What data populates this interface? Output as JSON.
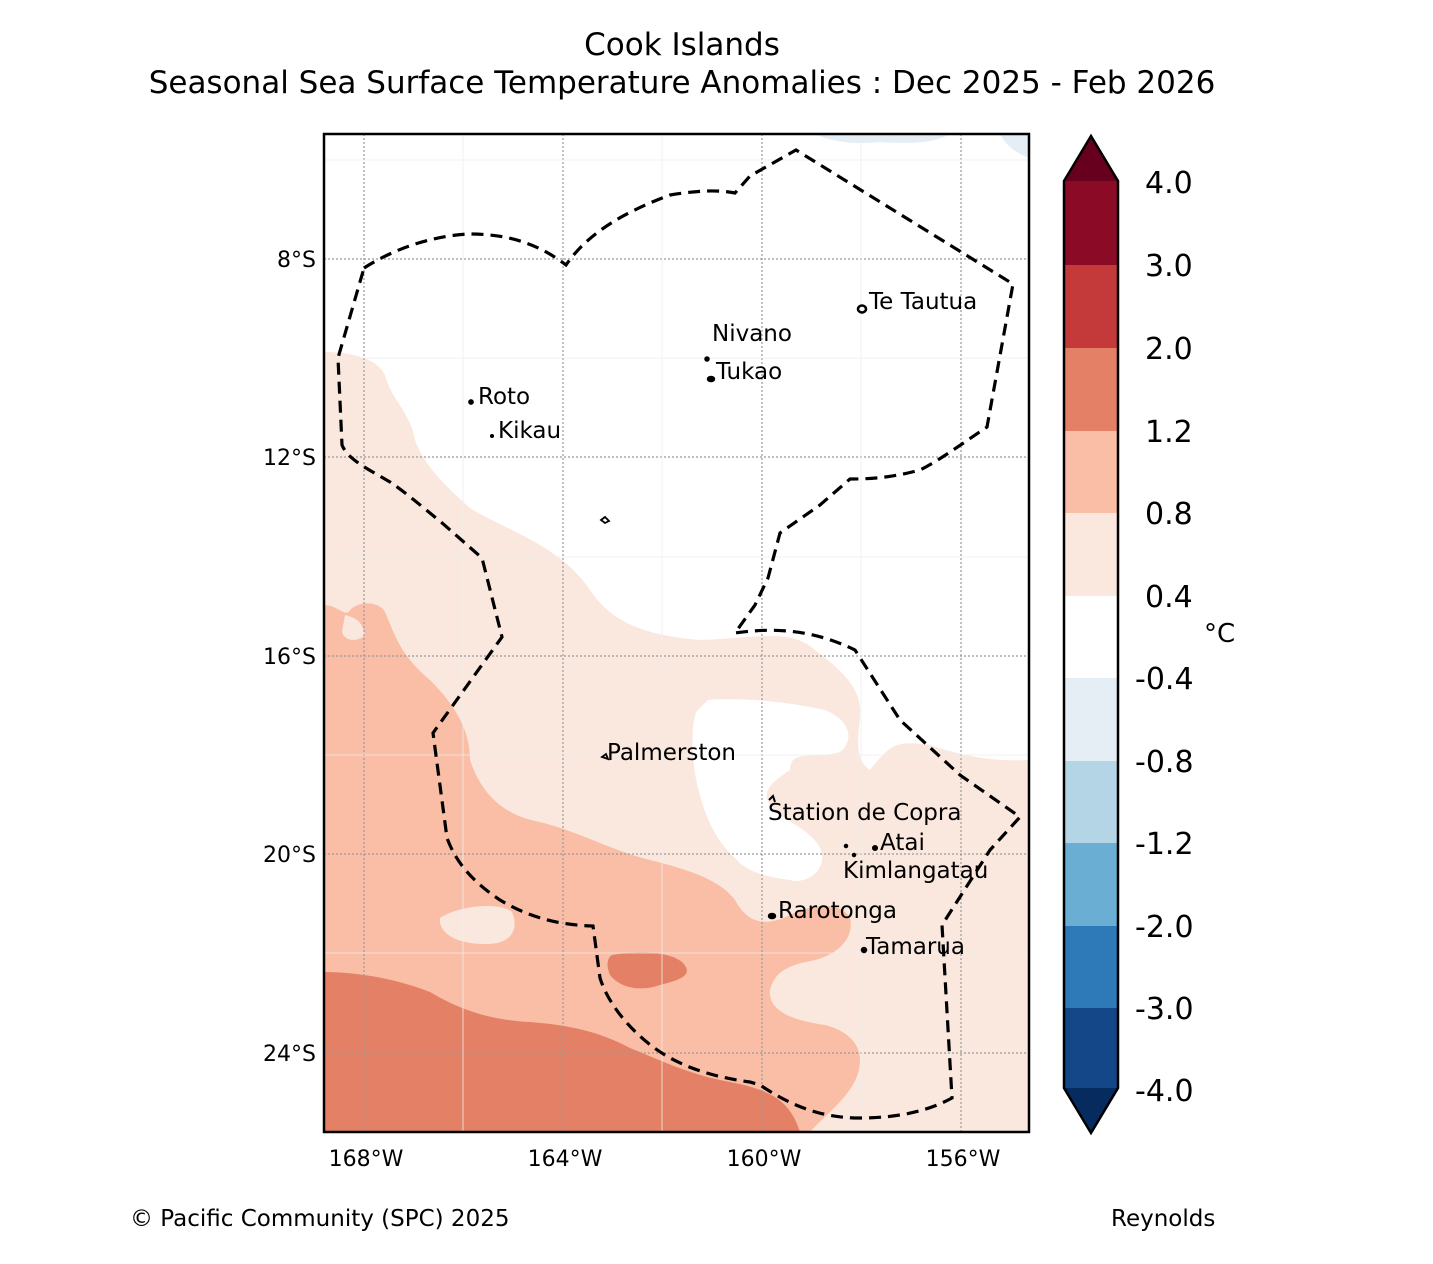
{
  "title": {
    "line1": "Cook Islands",
    "line2": "Seasonal Sea Surface Temperature Anomalies : Dec 2025 - Feb 2026"
  },
  "axes": {
    "lat_labels": [
      "8°S",
      "12°S",
      "16°S",
      "20°S",
      "24°S"
    ],
    "lon_labels": [
      "168°W",
      "164°W",
      "160°W",
      "156°W"
    ]
  },
  "places": [
    {
      "name": "Te Tautua"
    },
    {
      "name": "Nivano"
    },
    {
      "name": "Tukao"
    },
    {
      "name": "Roto"
    },
    {
      "name": "Kikau"
    },
    {
      "name": "Palmerston"
    },
    {
      "name": "Station de Copra"
    },
    {
      "name": "Atai"
    },
    {
      "name": "Kimlangatau"
    },
    {
      "name": "Rarotonga"
    },
    {
      "name": "Tamarua"
    }
  ],
  "colorbar": {
    "unit": "°C",
    "labels": [
      "4.0",
      "3.0",
      "2.0",
      "1.2",
      "0.8",
      "0.4",
      "-0.4",
      "-0.8",
      "-1.2",
      "-2.0",
      "-3.0",
      "-4.0"
    ],
    "colors": [
      "#67001f",
      "#8b0a26",
      "#c43a3b",
      "#e48066",
      "#f9bea5",
      "#fae8de",
      "#ffffff",
      "#e6eef5",
      "#b3d5e6",
      "#6aaed4",
      "#2e79b8",
      "#134788",
      "#062b5e"
    ]
  },
  "footer": {
    "copyright": "© Pacific Community (SPC) 2025",
    "source": "Reynolds"
  }
}
